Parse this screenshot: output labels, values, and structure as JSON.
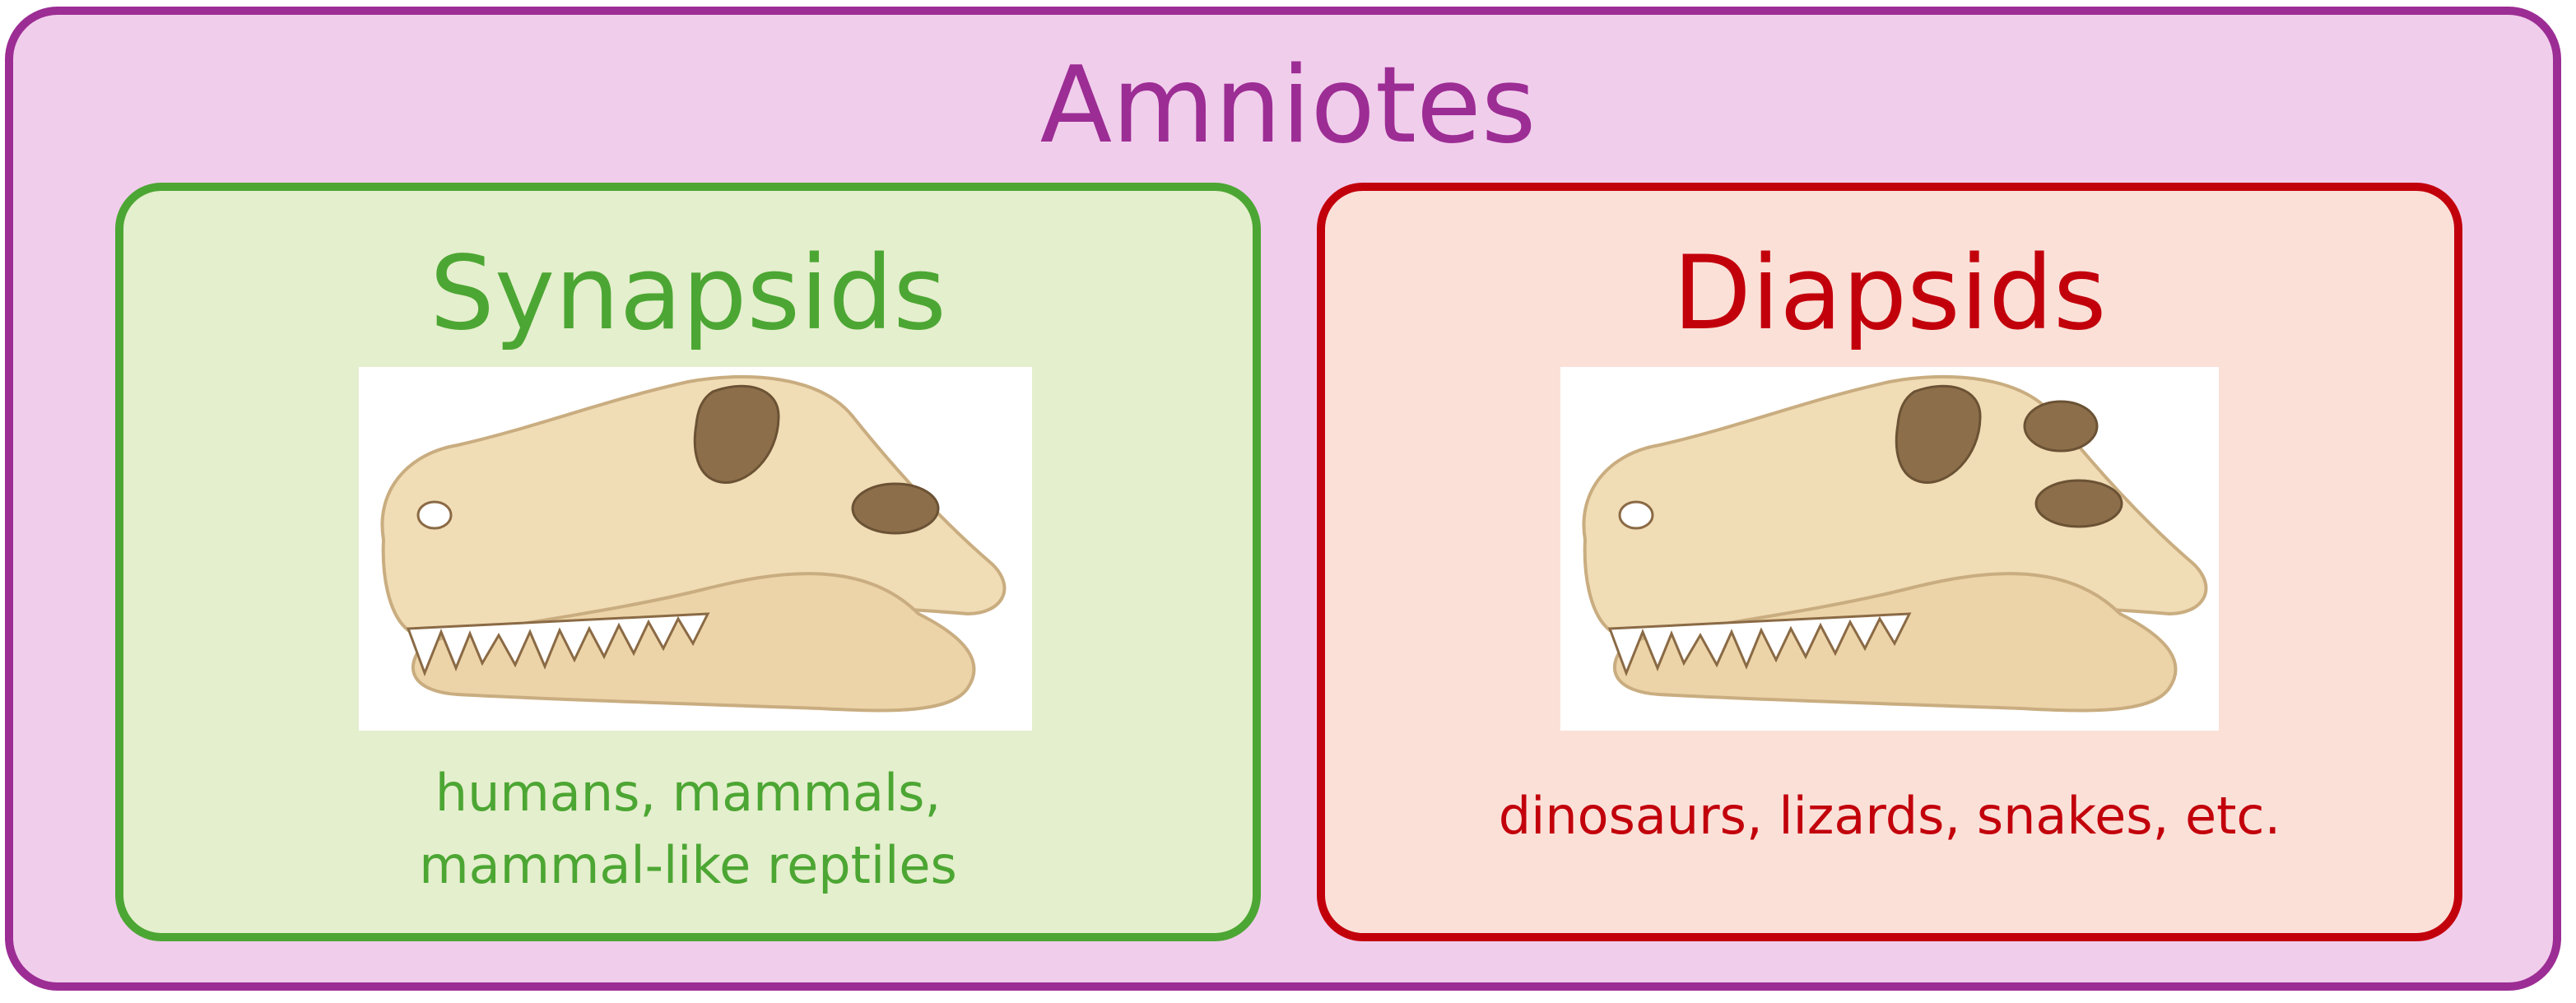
{
  "diagram": {
    "title": "Amniotes",
    "groups": [
      {
        "name": "Synapsids",
        "examples_line1": "humans, mammals,",
        "examples_line2": "mammal-like reptiles",
        "skull_openings": 1
      },
      {
        "name": "Diapsids",
        "examples_line1": "dinosaurs, lizards, snakes, etc.",
        "skull_openings": 2
      }
    ]
  },
  "colors": {
    "amniotes": "#9c2d94",
    "amniotes_fill": "#f1cdec",
    "synapsids": "#4ca633",
    "synapsids_fill": "#e4efcd",
    "diapsids": "#c2000b",
    "diapsids_fill": "#fbe0d8",
    "bone": "#f0dcb5",
    "bone_outline": "#c9ad80"
  }
}
